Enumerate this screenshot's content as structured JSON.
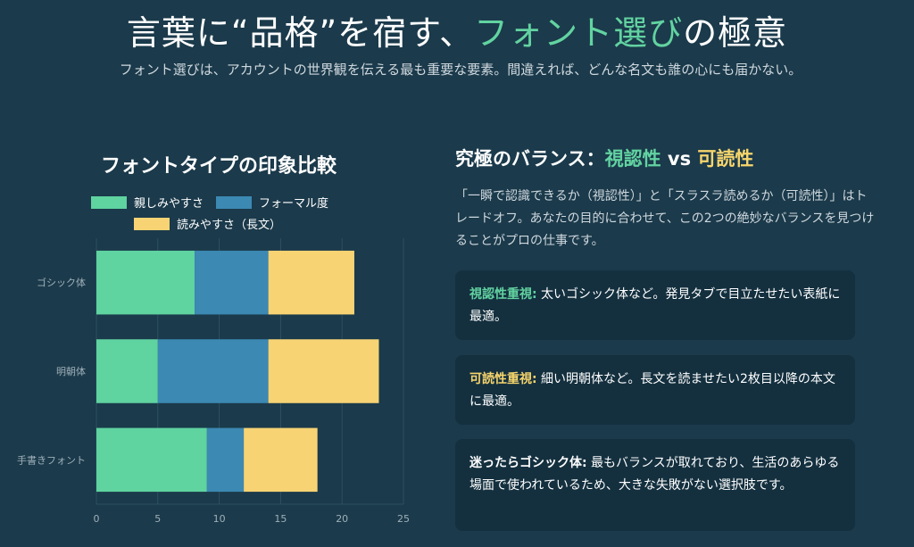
{
  "header": {
    "title_pre": "言葉に“品格”を宿す、",
    "title_accent": "フォント選び",
    "title_post": "の極意",
    "subtitle": "フォント選びは、アカウントの世界観を伝える最も重要な要素。間違えれば、どんな名文も誰の心にも届かない。"
  },
  "chart_data": {
    "type": "bar",
    "orientation": "horizontal",
    "stacked": true,
    "title": "フォントタイプの印象比較",
    "categories": [
      "ゴシック体",
      "明朝体",
      "手書きフォント"
    ],
    "series": [
      {
        "name": "親しみやすさ",
        "values": [
          8,
          5,
          9
        ],
        "color": "#5fd3a0"
      },
      {
        "name": "フォーマル度",
        "values": [
          6,
          9,
          3
        ],
        "color": "#3c89b3"
      },
      {
        "name": "読みやすさ（長文）",
        "values": [
          7,
          9,
          6
        ],
        "color": "#f7d374"
      }
    ],
    "xlim": [
      0,
      25
    ],
    "xticks": [
      0,
      5,
      10,
      15,
      20,
      25
    ],
    "xlabel": "",
    "ylabel": "",
    "grid": true,
    "legend": "top"
  },
  "right": {
    "heading_pre": "究極のバランス：",
    "heading_a": "視認性",
    "heading_vs": " vs ",
    "heading_b": "可読性",
    "paragraph": "「一瞬で認識できるか（視認性）」と「スラスラ読めるか（可読性）」はトレードオフ。あなたの目的に合わせて、この2つの絶妙なバランスを見つけることがプロの仕事です。",
    "cards": [
      {
        "label": "視認性重視:",
        "text": " 太いゴシック体など。発見タブで目立たせたい表紙に最適。",
        "label_color": "#62d3a1"
      },
      {
        "label": "可読性重視:",
        "text": " 細い明朝体など。長文を読ませたい2枚目以降の本文に最適。",
        "label_color": "#f7d56c"
      },
      {
        "label": "迷ったらゴシック体:",
        "text": " 最もバランスが取れており、生活のあらゆる場面で使われているため、大きな失敗がない選択肢です。",
        "label_color": "#ffffff"
      }
    ]
  }
}
